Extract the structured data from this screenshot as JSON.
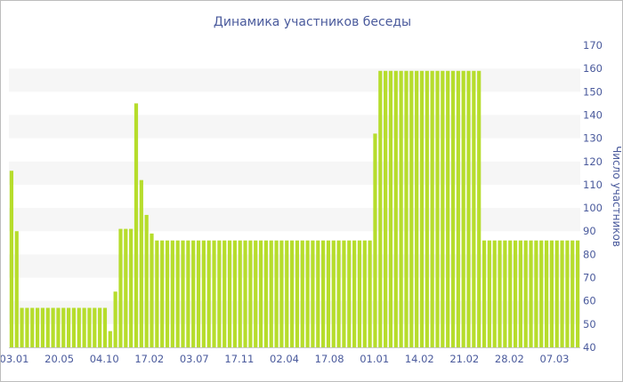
{
  "chart_data": {
    "type": "bar",
    "title": "Динамика участников беседы",
    "ylabel": "Число участников",
    "xlabel": "",
    "ylim": [
      40,
      170
    ],
    "yticks": [
      40,
      50,
      60,
      70,
      80,
      90,
      100,
      110,
      120,
      130,
      140,
      150,
      160,
      170
    ],
    "x_tick_labels": [
      "03.01",
      "20.05",
      "04.10",
      "17.02",
      "03.07",
      "17.11",
      "02.04",
      "17.08",
      "01.01",
      "14.02",
      "21.02",
      "28.02",
      "07.03"
    ],
    "grid": "horizontal alternating bands",
    "bar_color": "#b6dd2c",
    "band_color": "#f6f6f6",
    "text_color": "#4a5a9c",
    "values": [
      116,
      90,
      57,
      57,
      57,
      57,
      57,
      57,
      57,
      57,
      57,
      57,
      57,
      57,
      57,
      57,
      57,
      57,
      57,
      47,
      64,
      91,
      91,
      91,
      145,
      112,
      97,
      89,
      86,
      86,
      86,
      86,
      86,
      86,
      86,
      86,
      86,
      86,
      86,
      86,
      86,
      86,
      86,
      86,
      86,
      86,
      86,
      86,
      86,
      86,
      86,
      86,
      86,
      86,
      86,
      86,
      86,
      86,
      86,
      86,
      86,
      86,
      86,
      86,
      86,
      86,
      86,
      86,
      86,
      86,
      132,
      159,
      159,
      159,
      159,
      159,
      159,
      159,
      159,
      159,
      159,
      159,
      159,
      159,
      159,
      159,
      159,
      159,
      159,
      159,
      159,
      86,
      86,
      86,
      86,
      86,
      86,
      86,
      86,
      86,
      86,
      86,
      86,
      86,
      86,
      86,
      86,
      86,
      86,
      86
    ]
  }
}
